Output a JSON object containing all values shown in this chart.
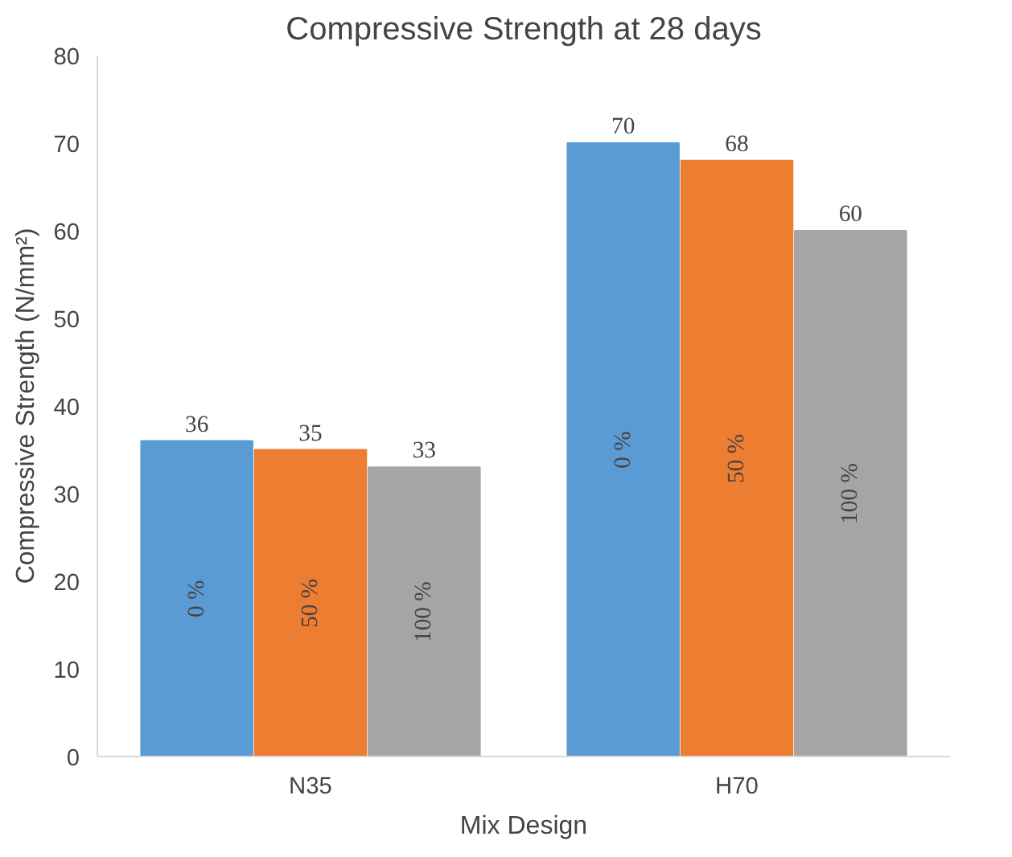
{
  "chart_data": {
    "type": "bar",
    "title": "Compressive Strength at 28 days",
    "xlabel": "Mix Design",
    "ylabel": "Compressive Strength (N/mm²)",
    "categories": [
      "N35",
      "H70"
    ],
    "series": [
      {
        "name": "0 %",
        "color": "#5b9bd5",
        "values": [
          36,
          70
        ]
      },
      {
        "name": "50 %",
        "color": "#ed7d31",
        "values": [
          35,
          68
        ]
      },
      {
        "name": "100 %",
        "color": "#a5a5a5",
        "values": [
          33,
          60
        ]
      }
    ],
    "ylim": [
      0,
      80
    ],
    "yticks": [
      0,
      10,
      20,
      30,
      40,
      50,
      60,
      70,
      80
    ],
    "grid": false,
    "data_labels": true
  }
}
